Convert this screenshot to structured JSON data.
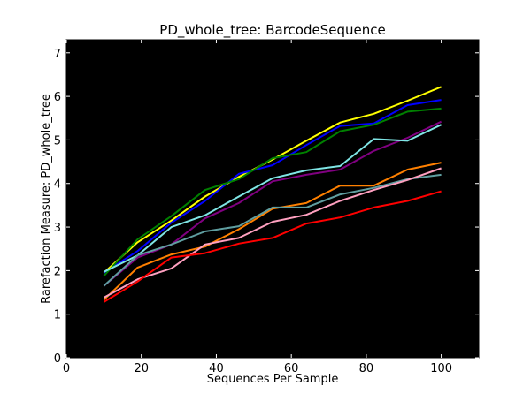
{
  "chart_data": {
    "type": "line",
    "title": "PD_whole_tree: BarcodeSequence",
    "xlabel": "Sequences Per Sample",
    "ylabel": "Rarefaction Measure: PD_whole_tree",
    "xlim": [
      0,
      110
    ],
    "ylim": [
      0,
      7.3
    ],
    "xticks": [
      0,
      20,
      40,
      60,
      80,
      100
    ],
    "yticks": [
      0,
      1,
      2,
      3,
      4,
      5,
      6,
      7
    ],
    "grid": false,
    "background": "#000000",
    "x": [
      10,
      19,
      28,
      37,
      46,
      55,
      64,
      73,
      82,
      91,
      100
    ],
    "series": [
      {
        "color": "#ffff00",
        "values": [
          1.95,
          2.65,
          3.15,
          3.7,
          4.15,
          4.55,
          4.98,
          5.4,
          5.6,
          5.9,
          6.22
        ]
      },
      {
        "color": "#0000ff",
        "values": [
          1.95,
          2.45,
          3.1,
          3.6,
          4.22,
          4.42,
          4.88,
          5.32,
          5.38,
          5.8,
          5.92
        ]
      },
      {
        "color": "#008000",
        "values": [
          1.88,
          2.72,
          3.25,
          3.85,
          4.1,
          4.58,
          4.72,
          5.2,
          5.35,
          5.65,
          5.72
        ]
      },
      {
        "color": "#800080",
        "values": [
          1.65,
          2.3,
          2.6,
          3.2,
          3.55,
          4.05,
          4.2,
          4.32,
          4.75,
          5.05,
          5.42
        ]
      },
      {
        "color": "#7fe5e5",
        "values": [
          1.97,
          2.35,
          3.0,
          3.27,
          3.7,
          4.12,
          4.3,
          4.4,
          5.02,
          4.98,
          5.35
        ]
      },
      {
        "color": "#ff8000",
        "values": [
          1.33,
          2.07,
          2.37,
          2.55,
          2.95,
          3.42,
          3.55,
          3.95,
          3.95,
          4.32,
          4.48
        ]
      },
      {
        "color": "#5f9ea0",
        "values": [
          1.65,
          2.35,
          2.6,
          2.9,
          3.02,
          3.45,
          3.45,
          3.75,
          3.9,
          4.1,
          4.2
        ]
      },
      {
        "color": "#ffa0c0",
        "values": [
          1.38,
          1.8,
          2.05,
          2.6,
          2.75,
          3.12,
          3.28,
          3.6,
          3.85,
          4.08,
          4.35
        ]
      },
      {
        "color": "#ff0000",
        "values": [
          1.28,
          1.75,
          2.3,
          2.4,
          2.62,
          2.75,
          3.08,
          3.22,
          3.45,
          3.6,
          3.82
        ]
      }
    ]
  }
}
